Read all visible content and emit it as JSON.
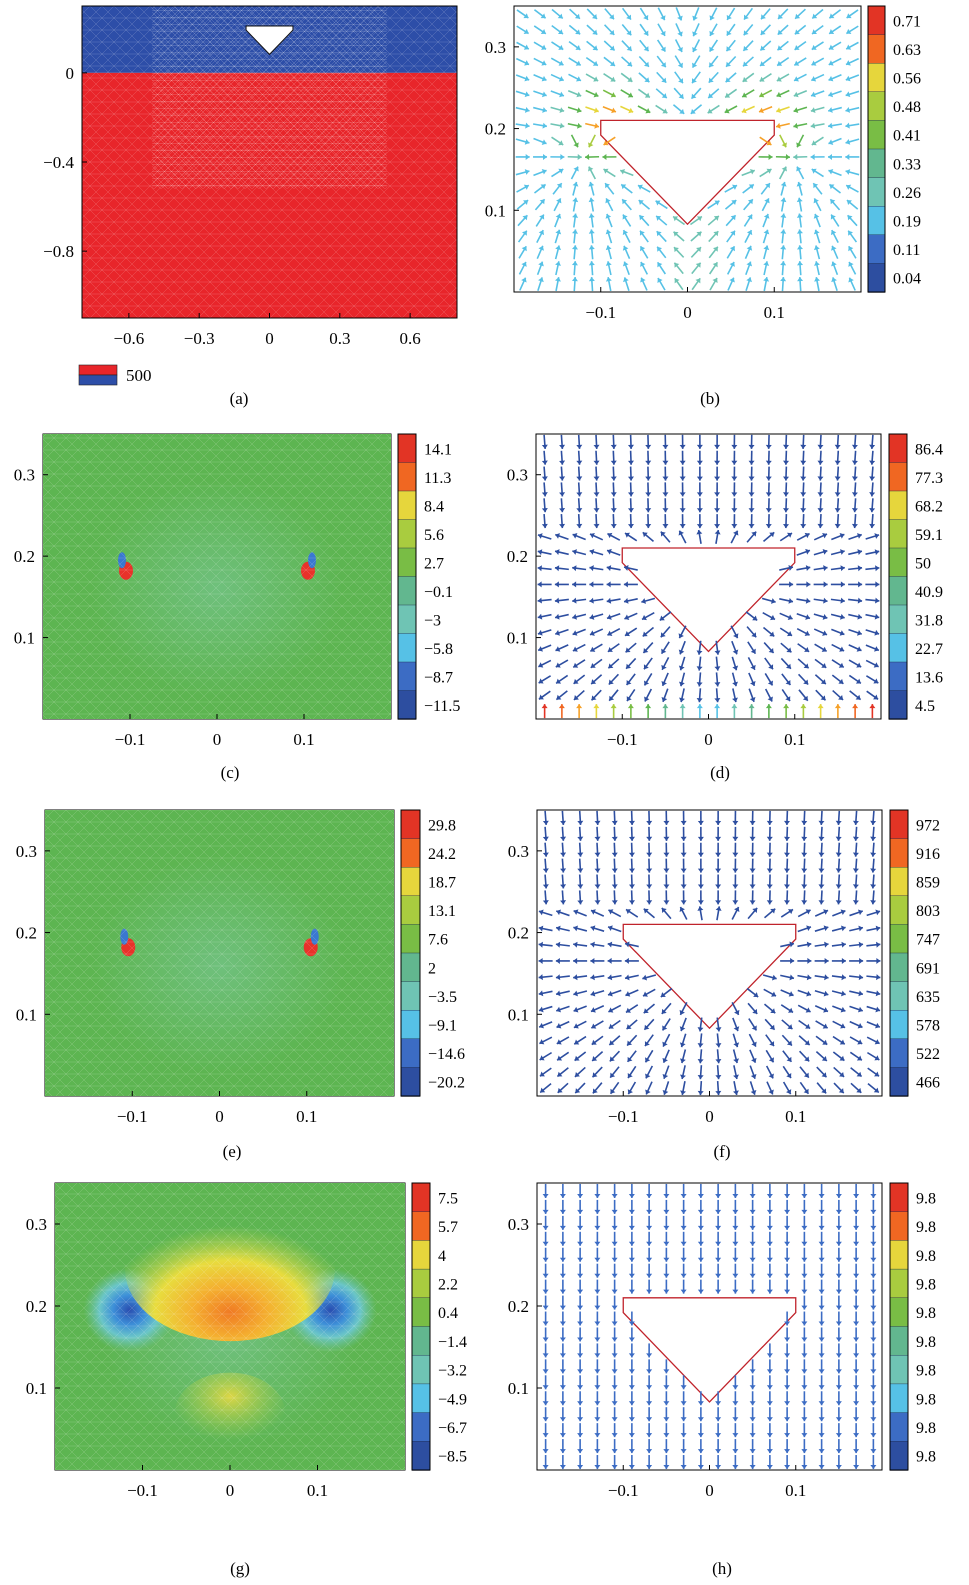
{
  "colors": {
    "red": "#e8252a",
    "blue": "#2d4ea8",
    "green": "#5db551",
    "arrow": "#3a53b5",
    "outline": "#c0232b",
    "scale": [
      "#2d4ea0",
      "#3c6cc4",
      "#3c9fdd",
      "#56c1e6",
      "#6fc4b4",
      "#62b78f",
      "#5db551",
      "#79bd45",
      "#a9cc3f",
      "#e6d63c",
      "#f6a128",
      "#f06722",
      "#e23425"
    ]
  },
  "panels": [
    {
      "id": "a",
      "caption": "(a)",
      "kind": "mesh",
      "x_ticks": [
        "−0.6",
        "−0.3",
        "0",
        "0.3",
        "0.6"
      ],
      "y_ticks": [
        "0",
        "−0.4",
        "−0.8"
      ],
      "legend_value": "500"
    },
    {
      "id": "b",
      "caption": "(b)",
      "kind": "vector",
      "x_ticks": [
        "−0.1",
        "0",
        "0.1"
      ],
      "y_ticks": [
        "0.3",
        "0.2",
        "0.1"
      ],
      "colorbar": [
        "0.71",
        "0.63",
        "0.56",
        "0.48",
        "0.41",
        "0.33",
        "0.26",
        "0.19",
        "0.11",
        "0.04"
      ]
    },
    {
      "id": "c",
      "caption": "(c)",
      "kind": "contour",
      "x_ticks": [
        "−0.1",
        "0",
        "0.1"
      ],
      "y_ticks": [
        "0.3",
        "0.2",
        "0.1"
      ],
      "colorbar": [
        "14.1",
        "11.3",
        "8.4",
        "5.6",
        "2.7",
        "−0.1",
        "−3",
        "−5.8",
        "−8.7",
        "−11.5"
      ]
    },
    {
      "id": "d",
      "caption": "(d)",
      "kind": "vector",
      "x_ticks": [
        "−0.1",
        "0",
        "0.1"
      ],
      "y_ticks": [
        "0.3",
        "0.2",
        "0.1"
      ],
      "colorbar": [
        "86.4",
        "77.3",
        "68.2",
        "59.1",
        "50",
        "40.9",
        "31.8",
        "22.7",
        "13.6",
        "4.5"
      ]
    },
    {
      "id": "e",
      "caption": "(e)",
      "kind": "contour",
      "x_ticks": [
        "−0.1",
        "0",
        "0.1"
      ],
      "y_ticks": [
        "0.3",
        "0.2",
        "0.1"
      ],
      "colorbar": [
        "29.8",
        "24.2",
        "18.7",
        "13.1",
        "7.6",
        "2",
        "−3.5",
        "−9.1",
        "−14.6",
        "−20.2"
      ]
    },
    {
      "id": "f",
      "caption": "(f)",
      "kind": "vector",
      "x_ticks": [
        "−0.1",
        "0",
        "0.1"
      ],
      "y_ticks": [
        "0.3",
        "0.2",
        "0.1"
      ],
      "colorbar": [
        "972",
        "916",
        "859",
        "803",
        "747",
        "691",
        "635",
        "578",
        "522",
        "466"
      ]
    },
    {
      "id": "g",
      "caption": "(g)",
      "kind": "contour",
      "x_ticks": [
        "−0.1",
        "0",
        "0.1"
      ],
      "y_ticks": [
        "0.3",
        "0.2",
        "0.1"
      ],
      "colorbar": [
        "7.5",
        "5.7",
        "4",
        "2.2",
        "0.4",
        "−1.4",
        "−3.2",
        "−4.9",
        "−6.7",
        "−8.5"
      ]
    },
    {
      "id": "h",
      "caption": "(h)",
      "kind": "vector",
      "x_ticks": [
        "−0.1",
        "0",
        "0.1"
      ],
      "y_ticks": [
        "0.3",
        "0.2",
        "0.1"
      ],
      "colorbar": [
        "9.8",
        "9.8",
        "9.8",
        "9.8",
        "9.8",
        "9.8",
        "9.8",
        "9.8",
        "9.8",
        "9.8"
      ]
    }
  ],
  "chart_data": [
    {
      "type": "heatmap",
      "panel": "a",
      "description_values": {
        "xlim": [
          -0.8,
          0.8
        ],
        "ylim": [
          -1.1,
          0.3
        ]
      },
      "x_ticks": [
        -0.6,
        -0.3,
        0,
        0.3,
        0.6
      ],
      "y_ticks": [
        0,
        -0.4,
        -0.8
      ],
      "regions": [
        {
          "y_range": [
            0,
            0.3
          ],
          "color": "#2d4ea8"
        },
        {
          "y_range": [
            -1.1,
            0
          ],
          "color": "#e8252a"
        }
      ],
      "legend": [
        "500"
      ],
      "obstacle": {
        "top_y": 0.21,
        "half_width": 0.1,
        "apex_y": 0.083
      }
    },
    {
      "type": "vector_field",
      "panel": "b",
      "xlim": [
        -0.2,
        0.2
      ],
      "ylim": [
        0.0,
        0.35
      ],
      "colorbar": [
        0.71,
        0.63,
        0.56,
        0.48,
        0.41,
        0.33,
        0.26,
        0.19,
        0.11,
        0.04
      ]
    },
    {
      "type": "heatmap",
      "panel": "c",
      "xlim": [
        -0.2,
        0.2
      ],
      "ylim": [
        0.0,
        0.35
      ],
      "colorbar": [
        14.1,
        11.3,
        8.4,
        5.6,
        2.7,
        -0.1,
        -3,
        -5.8,
        -8.7,
        -11.5
      ]
    },
    {
      "type": "vector_field",
      "panel": "d",
      "xlim": [
        -0.2,
        0.2
      ],
      "ylim": [
        0.0,
        0.35
      ],
      "colorbar": [
        86.4,
        77.3,
        68.2,
        59.1,
        50,
        40.9,
        31.8,
        22.7,
        13.6,
        4.5
      ]
    },
    {
      "type": "heatmap",
      "panel": "e",
      "xlim": [
        -0.2,
        0.2
      ],
      "ylim": [
        0.0,
        0.35
      ],
      "colorbar": [
        29.8,
        24.2,
        18.7,
        13.1,
        7.6,
        2,
        -3.5,
        -9.1,
        -14.6,
        -20.2
      ]
    },
    {
      "type": "vector_field",
      "panel": "f",
      "xlim": [
        -0.2,
        0.2
      ],
      "ylim": [
        0.0,
        0.35
      ],
      "colorbar": [
        972,
        916,
        859,
        803,
        747,
        691,
        635,
        578,
        522,
        466
      ]
    },
    {
      "type": "heatmap",
      "panel": "g",
      "xlim": [
        -0.2,
        0.2
      ],
      "ylim": [
        0.0,
        0.35
      ],
      "colorbar": [
        7.5,
        5.7,
        4,
        2.2,
        0.4,
        -1.4,
        -3.2,
        -4.9,
        -6.7,
        -8.5
      ]
    },
    {
      "type": "vector_field",
      "panel": "h",
      "xlim": [
        -0.2,
        0.2
      ],
      "ylim": [
        0.0,
        0.35
      ],
      "colorbar": [
        9.8,
        9.8,
        9.8,
        9.8,
        9.8,
        9.8,
        9.8,
        9.8,
        9.8,
        9.8
      ]
    }
  ]
}
